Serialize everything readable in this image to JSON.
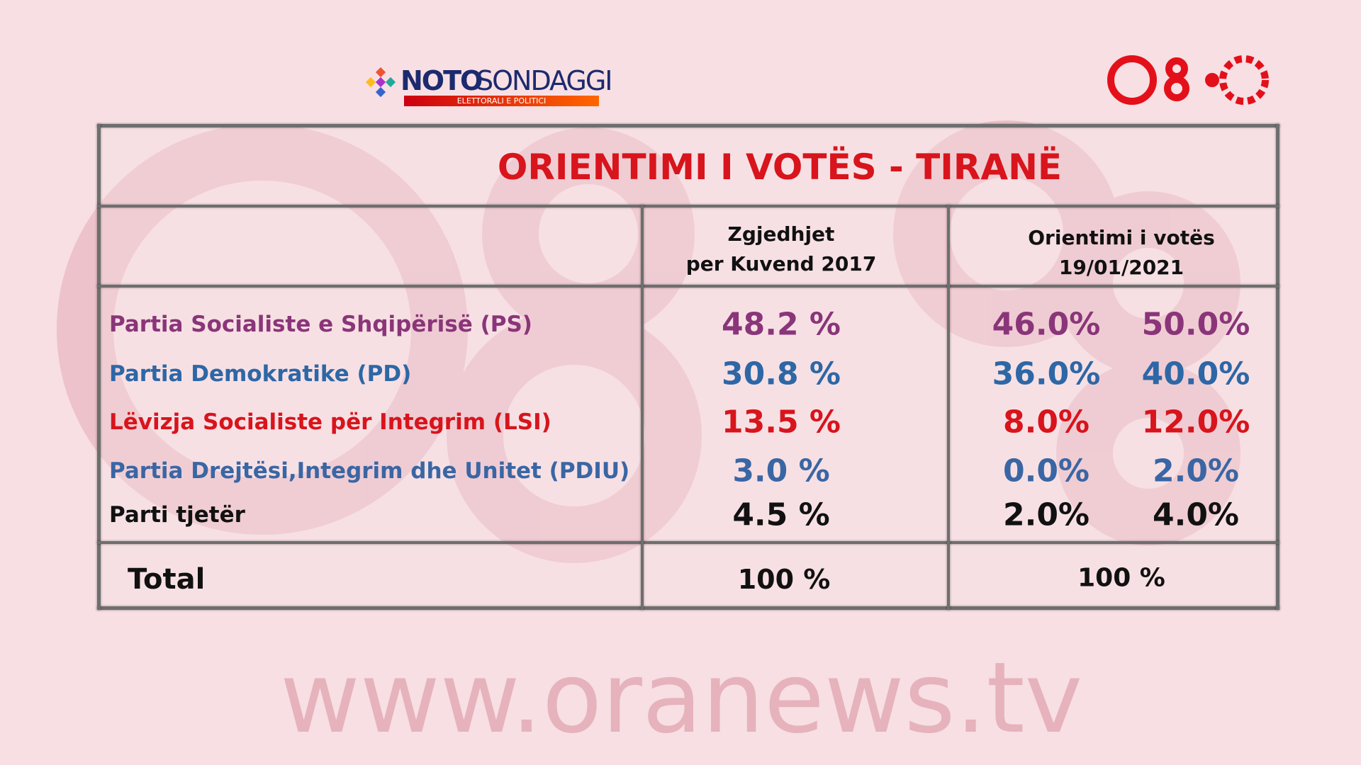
{
  "logo": {
    "brand": "NOTO",
    "brand_suffix": "SONDAGGI",
    "tagline": "ELETTORALI E POLITICI"
  },
  "table": {
    "title": "ORIENTIMI I VOTËS - TIRANË",
    "columns": [
      [
        "Zgjedhjet",
        "per Kuvend 2017"
      ],
      [
        "Orientimi i votës",
        "19/01/2021"
      ]
    ],
    "rows": [
      {
        "party": "Partia Socialiste e Shqipërisë (PS)",
        "color": "#8a3579",
        "result_2017": "48.2 %",
        "poll_low": "46.0%",
        "poll_high": "50.0%"
      },
      {
        "party": "Partia Demokratike (PD)",
        "color": "#2d67a6",
        "result_2017": "30.8 %",
        "poll_low": "36.0%",
        "poll_high": "40.0%"
      },
      {
        "party": "Lëvizja Socialiste për Integrim (LSI)",
        "color": "#d8141c",
        "result_2017": "13.5 %",
        "poll_low": "8.0%",
        "poll_high": "12.0%"
      },
      {
        "party": "Partia Drejtësi,Integrim dhe Unitet (PDIU)",
        "color": "#3a66a4",
        "result_2017": "3.0 %",
        "poll_low": "0.0%",
        "poll_high": "2.0%"
      },
      {
        "party": "Parti tjetër",
        "color": "#111111",
        "result_2017": "4.5 %",
        "poll_low": "2.0%",
        "poll_high": "4.0%"
      }
    ],
    "total": {
      "label": "Total",
      "result_2017": "100 %",
      "poll": "100 %"
    }
  },
  "watermark": "www.oranews.tv"
}
